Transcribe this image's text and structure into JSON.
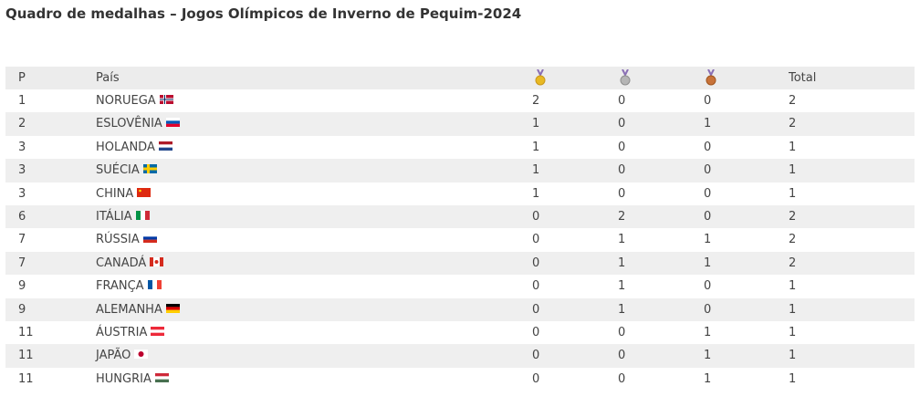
{
  "header": {
    "title": "Quadro de medalhas – Jogos Olímpicos de Inverno de Pequim-2024"
  },
  "table": {
    "columns": {
      "rank": "P",
      "country": "País",
      "total": "Total"
    },
    "rows": [
      [
        1,
        "NORUEGA",
        2,
        0,
        0,
        2
      ],
      [
        2,
        "ESLOVÊNIA",
        1,
        0,
        1,
        2
      ],
      [
        3,
        "HOLANDA",
        1,
        0,
        0,
        1
      ],
      [
        3,
        "SUÉCIA",
        1,
        0,
        0,
        1
      ],
      [
        3,
        "CHINA",
        1,
        0,
        0,
        1
      ],
      [
        6,
        "ITÁLIA",
        0,
        2,
        0,
        2
      ],
      [
        7,
        "RÚSSIA",
        0,
        1,
        1,
        2
      ],
      [
        7,
        "CANADÁ",
        0,
        1,
        1,
        2
      ],
      [
        9,
        "FRANÇA",
        0,
        1,
        0,
        1
      ],
      [
        9,
        "ALEMANHA",
        0,
        1,
        0,
        1
      ],
      [
        11,
        "ÁUSTRIA",
        0,
        0,
        1,
        1
      ],
      [
        11,
        "JAPÃO",
        0,
        0,
        1,
        1
      ],
      [
        11,
        "HUNGRIA",
        0,
        0,
        1,
        1
      ]
    ]
  }
}
